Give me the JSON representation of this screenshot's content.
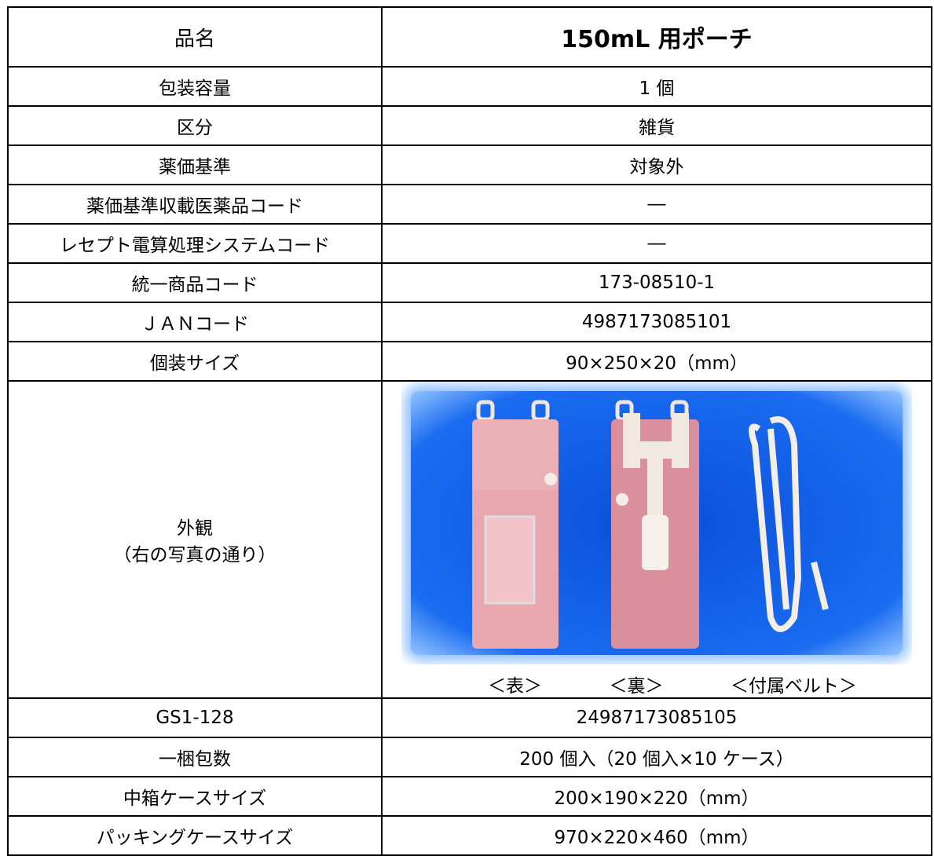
{
  "table": {
    "header": [
      "品名",
      "150mL 用ポーチ"
    ],
    "rows": [
      [
        "包装容量",
        "1 個"
      ],
      [
        "区分",
        "雑貨"
      ],
      [
        "薬価基準",
        "対象外"
      ],
      [
        "薬価基準収載医薬品コード",
        "―"
      ],
      [
        "レセプト電算処理システムコード",
        "―"
      ],
      [
        "統一商品コード",
        "173-08510-1"
      ],
      [
        "ＪＡＮコード",
        "4987173085101"
      ],
      [
        "個装サイズ",
        "90×250×20（mm）"
      ]
    ],
    "appearance": {
      "label": [
        "外観",
        "（右の写真の通り）"
      ],
      "captions": [
        "＜表＞",
        "＜裏＞",
        "＜付属ベルト＞"
      ]
    },
    "rows_after": [
      [
        "GS1-128",
        "24987173085105"
      ],
      [
        "一梱包数",
        "200 個入（20 個入×10 ケース）"
      ],
      [
        "中箱ケースサイズ",
        "200×190×220（mm）"
      ],
      [
        "パッキングケースサイズ",
        "970×220×460（mm）"
      ]
    ]
  }
}
